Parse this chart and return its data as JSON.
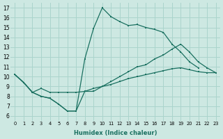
{
  "bg_color": "#cde8e2",
  "grid_color": "#aad4cc",
  "line_color": "#1a7060",
  "xlabel": "Humidex (Indice chaleur)",
  "xlim": [
    -0.5,
    23.5
  ],
  "ylim": [
    5.5,
    17.5
  ],
  "xtick_vals": [
    0,
    1,
    2,
    3,
    4,
    5,
    6,
    7,
    8,
    9,
    10,
    11,
    12,
    13,
    14,
    15,
    16,
    17,
    18,
    19,
    20,
    21,
    22,
    23
  ],
  "ytick_vals": [
    6,
    7,
    8,
    9,
    10,
    11,
    12,
    13,
    14,
    15,
    16,
    17
  ],
  "line1_x": [
    0,
    1,
    2,
    3,
    4,
    5,
    6,
    7,
    8,
    9,
    10,
    11,
    12,
    13,
    14,
    15,
    16,
    17,
    18,
    19,
    20,
    21
  ],
  "line1_y": [
    10.2,
    9.4,
    8.4,
    8.0,
    7.8,
    7.2,
    6.5,
    6.5,
    11.8,
    14.9,
    17.0,
    16.1,
    15.6,
    15.2,
    15.3,
    15.0,
    14.8,
    14.5,
    13.3,
    12.5,
    11.5,
    10.9
  ],
  "line2_x": [
    0,
    1,
    2,
    3,
    4,
    5,
    6,
    7,
    8,
    9,
    10,
    11,
    12,
    13,
    14,
    15,
    16,
    17,
    18,
    19,
    20,
    21,
    22,
    23
  ],
  "line2_y": [
    10.2,
    9.4,
    8.4,
    8.0,
    7.8,
    7.2,
    6.5,
    6.5,
    8.5,
    8.5,
    9.0,
    9.5,
    10.0,
    10.5,
    11.0,
    11.2,
    11.8,
    12.2,
    12.8,
    13.3,
    12.5,
    11.5,
    10.9,
    10.4
  ],
  "line3_x": [
    0,
    1,
    2,
    3,
    4,
    5,
    6,
    7,
    8,
    9,
    10,
    11,
    12,
    13,
    14,
    15,
    16,
    17,
    18,
    19,
    20,
    21,
    22,
    23
  ],
  "line3_y": [
    10.2,
    9.4,
    8.4,
    8.8,
    8.4,
    8.4,
    8.4,
    8.4,
    8.5,
    8.8,
    9.0,
    9.2,
    9.5,
    9.8,
    10.0,
    10.2,
    10.4,
    10.6,
    10.8,
    10.9,
    10.7,
    10.5,
    10.4,
    10.4
  ]
}
